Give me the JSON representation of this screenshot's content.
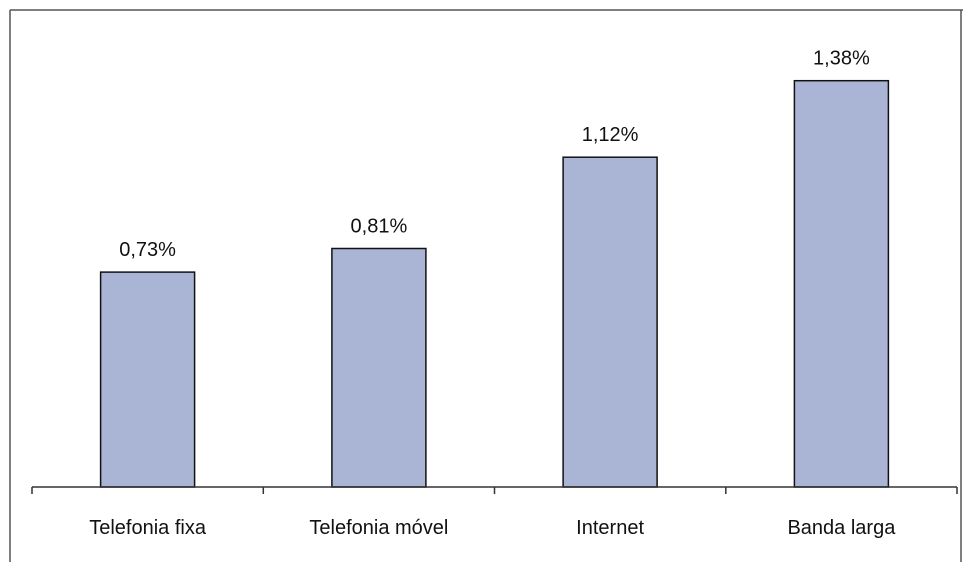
{
  "chart_data": {
    "type": "bar",
    "title": "",
    "xlabel": "",
    "ylabel": "",
    "categories": [
      "Telefonia fixa",
      "Telefonia móvel",
      "Internet",
      "Banda larga"
    ],
    "values": [
      0.73,
      0.81,
      1.12,
      1.38
    ],
    "value_labels": [
      "0,73%",
      "0,81%",
      "1,12%",
      "1,38%"
    ],
    "ylim": [
      0,
      1.62
    ],
    "grid": false,
    "legend": "none",
    "colors": {
      "bar_fill": "#aab4d5",
      "bar_stroke": "#111111",
      "axis": "#333333",
      "frame": "#555555"
    }
  }
}
